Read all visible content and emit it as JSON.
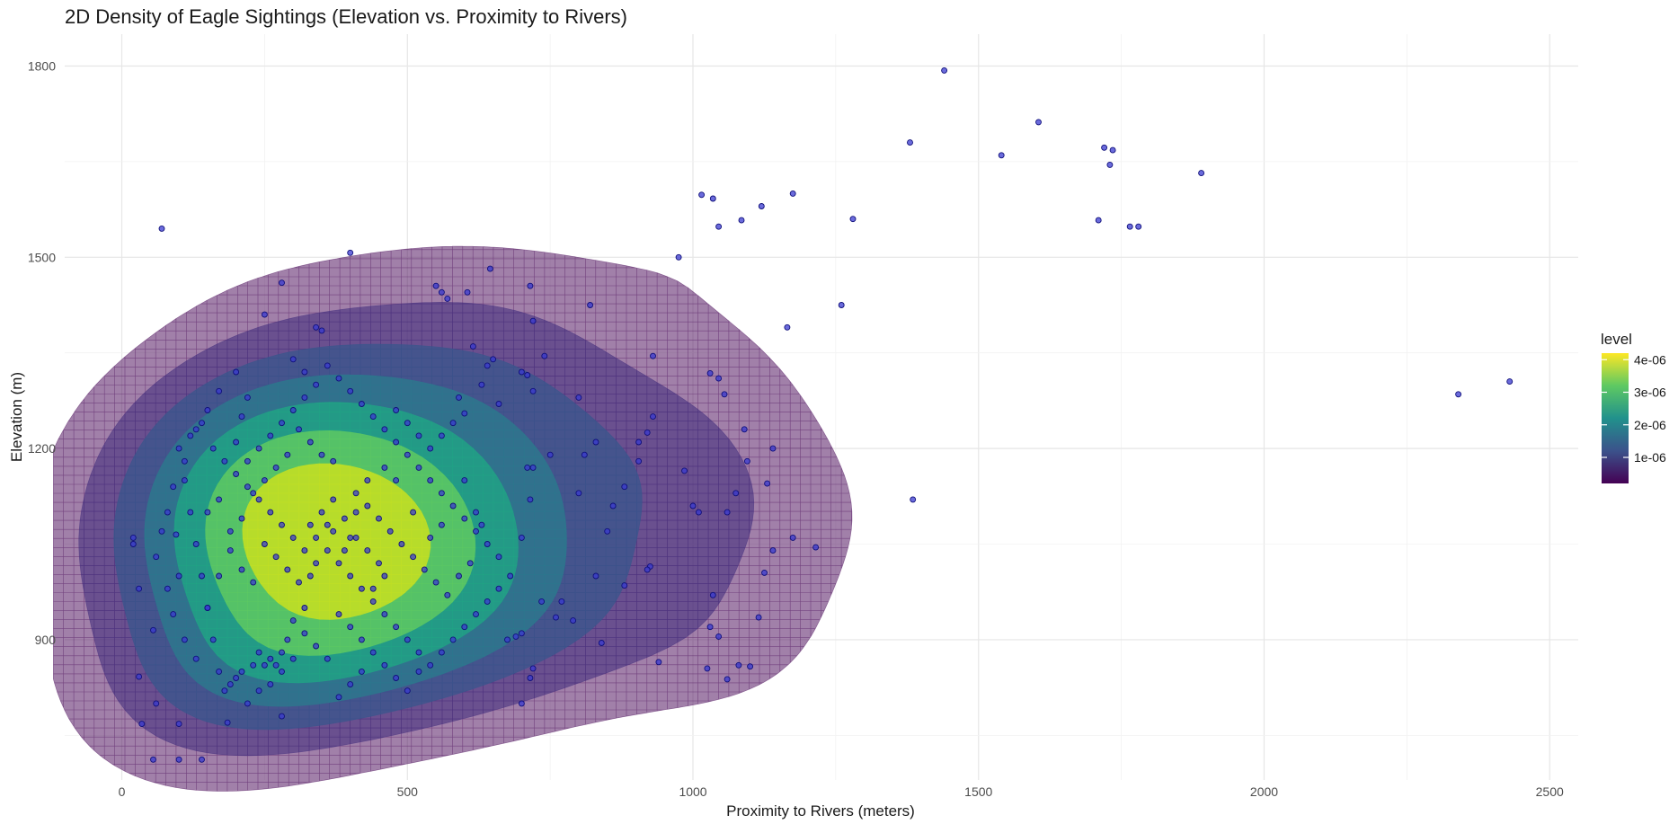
{
  "chart_data": {
    "type": "scatter",
    "title": "2D Density of Eagle Sightings (Elevation vs. Proximity to Rivers)",
    "xlabel": "Proximity to Rivers (meters)",
    "ylabel": "Elevation (m)",
    "xlim": [
      -100,
      2550
    ],
    "ylim": [
      680,
      1850
    ],
    "x_ticks": [
      "0",
      "500",
      "1000",
      "1500",
      "2000",
      "2500"
    ],
    "x_tick_values": [
      0,
      500,
      1000,
      1500,
      2000,
      2500
    ],
    "y_ticks": [
      "900",
      "1200",
      "1500",
      "1800"
    ],
    "y_tick_values": [
      900,
      1200,
      1500,
      1800
    ],
    "grid": true,
    "legend": {
      "title": "level",
      "position": "right",
      "labels": [
        "4e-06",
        "3e-06",
        "2e-06",
        "1e-06"
      ],
      "values": [
        4e-06,
        3e-06,
        2e-06,
        1e-06
      ],
      "range": [
        2e-07,
        4.2e-06
      ],
      "colors": [
        "#440154",
        "#3b528b",
        "#21918c",
        "#5ec962",
        "#fde725"
      ]
    },
    "point_color": "#1f1fb5",
    "density_levels": [
      {
        "level": 5e-07,
        "color": "#440154",
        "opacity": 0.5
      },
      {
        "level": 1e-06,
        "color": "#46307e",
        "opacity": 0.6
      },
      {
        "level": 1.5e-06,
        "color": "#39568c",
        "opacity": 0.75
      },
      {
        "level": 2e-06,
        "color": "#2b7b8e",
        "opacity": 0.75
      },
      {
        "level": 2.5e-06,
        "color": "#21a585",
        "opacity": 0.8
      },
      {
        "level": 3e-06,
        "color": "#5ec962",
        "opacity": 0.85
      },
      {
        "level": 3.5e-06,
        "color": "#c2df23",
        "opacity": 0.9
      }
    ],
    "points": [
      [
        70,
        1545
      ],
      [
        400,
        1507
      ],
      [
        280,
        1460
      ],
      [
        250,
        1410
      ],
      [
        340,
        1390
      ],
      [
        350,
        1385
      ],
      [
        550,
        1455
      ],
      [
        560,
        1445
      ],
      [
        570,
        1435
      ],
      [
        605,
        1445
      ],
      [
        645,
        1482
      ],
      [
        715,
        1455
      ],
      [
        720,
        1400
      ],
      [
        820,
        1425
      ],
      [
        975,
        1500
      ],
      [
        1015,
        1598
      ],
      [
        1035,
        1592
      ],
      [
        1045,
        1548
      ],
      [
        1085,
        1558
      ],
      [
        1120,
        1580
      ],
      [
        1175,
        1600
      ],
      [
        1280,
        1560
      ],
      [
        1260,
        1425
      ],
      [
        1165,
        1390
      ],
      [
        1380,
        1680
      ],
      [
        1440,
        1793
      ],
      [
        1540,
        1660
      ],
      [
        1605,
        1712
      ],
      [
        1720,
        1672
      ],
      [
        1735,
        1668
      ],
      [
        1730,
        1645
      ],
      [
        1710,
        1558
      ],
      [
        1765,
        1548
      ],
      [
        1780,
        1548
      ],
      [
        1890,
        1632
      ],
      [
        2340,
        1285
      ],
      [
        2430,
        1305
      ],
      [
        1385,
        1120
      ],
      [
        1140,
        1200
      ],
      [
        1130,
        1145
      ],
      [
        1175,
        1060
      ],
      [
        1215,
        1045
      ],
      [
        1140,
        1040
      ],
      [
        1125,
        1005
      ],
      [
        1115,
        935
      ],
      [
        1045,
        905
      ],
      [
        1030,
        920
      ],
      [
        1035,
        970
      ],
      [
        1025,
        855
      ],
      [
        1080,
        860
      ],
      [
        1100,
        858
      ],
      [
        1060,
        838
      ],
      [
        940,
        865
      ],
      [
        840,
        895
      ],
      [
        700,
        800
      ],
      [
        715,
        840
      ],
      [
        720,
        855
      ],
      [
        30,
        842
      ],
      [
        35,
        768
      ],
      [
        55,
        712
      ],
      [
        100,
        712
      ],
      [
        140,
        712
      ],
      [
        100,
        768
      ],
      [
        185,
        770
      ],
      [
        280,
        780
      ],
      [
        20,
        1060
      ],
      [
        30,
        980
      ],
      [
        60,
        800
      ],
      [
        55,
        915
      ],
      [
        100,
        1000
      ],
      [
        95,
        1065
      ],
      [
        20,
        1050
      ],
      [
        930,
        1345
      ],
      [
        1030,
        1318
      ],
      [
        1045,
        1310
      ],
      [
        1055,
        1285
      ],
      [
        1090,
        1230
      ],
      [
        1095,
        1180
      ],
      [
        985,
        1165
      ],
      [
        1075,
        1130
      ],
      [
        1060,
        1100
      ],
      [
        1010,
        1100
      ],
      [
        1000,
        1110
      ],
      [
        920,
        1225
      ],
      [
        930,
        1250
      ],
      [
        905,
        1210
      ],
      [
        905,
        1180
      ],
      [
        880,
        1140
      ],
      [
        860,
        1110
      ],
      [
        850,
        1070
      ],
      [
        830,
        1000
      ],
      [
        880,
        985
      ],
      [
        925,
        1015
      ],
      [
        920,
        1010
      ],
      [
        760,
        935
      ],
      [
        770,
        960
      ],
      [
        790,
        930
      ],
      [
        700,
        910
      ],
      [
        690,
        905
      ],
      [
        675,
        900
      ],
      [
        735,
        960
      ],
      [
        700,
        1060
      ],
      [
        715,
        1120
      ],
      [
        710,
        1170
      ],
      [
        720,
        1170
      ],
      [
        750,
        1190
      ],
      [
        800,
        1130
      ],
      [
        810,
        1190
      ],
      [
        830,
        1210
      ],
      [
        800,
        1280
      ],
      [
        650,
        1340
      ],
      [
        640,
        1330
      ],
      [
        630,
        1300
      ],
      [
        615,
        1360
      ],
      [
        600,
        1255
      ],
      [
        590,
        1280
      ],
      [
        660,
        1270
      ],
      [
        700,
        1320
      ],
      [
        710,
        1315
      ],
      [
        720,
        1290
      ],
      [
        740,
        1345
      ],
      [
        600,
        1150
      ],
      [
        620,
        1100
      ],
      [
        630,
        1080
      ],
      [
        560,
        1080
      ],
      [
        540,
        1060
      ],
      [
        510,
        1100
      ],
      [
        480,
        1150
      ],
      [
        460,
        1170
      ],
      [
        430,
        1150
      ],
      [
        410,
        1100
      ],
      [
        400,
        1060
      ],
      [
        370,
        1120
      ],
      [
        360,
        1080
      ],
      [
        340,
        1020
      ],
      [
        330,
        1000
      ],
      [
        320,
        950
      ],
      [
        300,
        930
      ],
      [
        290,
        900
      ],
      [
        280,
        880
      ],
      [
        270,
        860
      ],
      [
        260,
        870
      ],
      [
        250,
        860
      ],
      [
        240,
        880
      ],
      [
        230,
        860
      ],
      [
        210,
        850
      ],
      [
        200,
        840
      ],
      [
        190,
        830
      ],
      [
        180,
        820
      ],
      [
        170,
        850
      ],
      [
        160,
        900
      ],
      [
        150,
        950
      ],
      [
        140,
        1000
      ],
      [
        130,
        1050
      ],
      [
        120,
        1100
      ],
      [
        110,
        1150
      ],
      [
        100,
        1200
      ],
      [
        120,
        1220
      ],
      [
        140,
        1240
      ],
      [
        160,
        1200
      ],
      [
        180,
        1180
      ],
      [
        200,
        1160
      ],
      [
        220,
        1140
      ],
      [
        240,
        1120
      ],
      [
        260,
        1100
      ],
      [
        280,
        1080
      ],
      [
        300,
        1060
      ],
      [
        320,
        1040
      ],
      [
        340,
        1060
      ],
      [
        360,
        1040
      ],
      [
        380,
        1020
      ],
      [
        400,
        1000
      ],
      [
        420,
        980
      ],
      [
        440,
        960
      ],
      [
        460,
        940
      ],
      [
        480,
        920
      ],
      [
        500,
        900
      ],
      [
        520,
        880
      ],
      [
        540,
        860
      ],
      [
        560,
        880
      ],
      [
        580,
        900
      ],
      [
        600,
        920
      ],
      [
        620,
        940
      ],
      [
        640,
        960
      ],
      [
        660,
        980
      ],
      [
        680,
        1000
      ],
      [
        660,
        1030
      ],
      [
        640,
        1050
      ],
      [
        620,
        1070
      ],
      [
        600,
        1090
      ],
      [
        580,
        1110
      ],
      [
        560,
        1130
      ],
      [
        540,
        1150
      ],
      [
        520,
        1170
      ],
      [
        500,
        1190
      ],
      [
        480,
        1210
      ],
      [
        460,
        1230
      ],
      [
        440,
        1250
      ],
      [
        420,
        1270
      ],
      [
        400,
        1290
      ],
      [
        380,
        1310
      ],
      [
        360,
        1330
      ],
      [
        340,
        1300
      ],
      [
        320,
        1280
      ],
      [
        300,
        1260
      ],
      [
        280,
        1240
      ],
      [
        260,
        1220
      ],
      [
        240,
        1200
      ],
      [
        220,
        1180
      ],
      [
        200,
        1210
      ],
      [
        210,
        1250
      ],
      [
        220,
        1280
      ],
      [
        200,
        1320
      ],
      [
        170,
        1290
      ],
      [
        150,
        1260
      ],
      [
        130,
        1230
      ],
      [
        110,
        1180
      ],
      [
        90,
        1140
      ],
      [
        80,
        1100
      ],
      [
        70,
        1070
      ],
      [
        60,
        1030
      ],
      [
        80,
        980
      ],
      [
        90,
        940
      ],
      [
        110,
        900
      ],
      [
        130,
        870
      ],
      [
        150,
        950
      ],
      [
        170,
        1000
      ],
      [
        190,
        1040
      ],
      [
        210,
        1010
      ],
      [
        230,
        990
      ],
      [
        250,
        1050
      ],
      [
        270,
        1030
      ],
      [
        290,
        1010
      ],
      [
        310,
        990
      ],
      [
        330,
        1080
      ],
      [
        350,
        1100
      ],
      [
        370,
        1070
      ],
      [
        390,
        1090
      ],
      [
        410,
        1130
      ],
      [
        430,
        1110
      ],
      [
        450,
        1090
      ],
      [
        470,
        1070
      ],
      [
        490,
        1050
      ],
      [
        510,
        1030
      ],
      [
        530,
        1010
      ],
      [
        550,
        990
      ],
      [
        570,
        970
      ],
      [
        590,
        1000
      ],
      [
        610,
        1020
      ],
      [
        450,
        1020
      ],
      [
        430,
        1040
      ],
      [
        410,
        1060
      ],
      [
        390,
        1040
      ],
      [
        370,
        1180
      ],
      [
        350,
        1190
      ],
      [
        330,
        1210
      ],
      [
        310,
        1230
      ],
      [
        290,
        1190
      ],
      [
        270,
        1170
      ],
      [
        250,
        1150
      ],
      [
        230,
        1130
      ],
      [
        210,
        1090
      ],
      [
        190,
        1070
      ],
      [
        170,
        1120
      ],
      [
        150,
        1100
      ],
      [
        480,
        1260
      ],
      [
        500,
        1240
      ],
      [
        520,
        1220
      ],
      [
        540,
        1200
      ],
      [
        560,
        1220
      ],
      [
        580,
        1240
      ],
      [
        320,
        1320
      ],
      [
        300,
        1340
      ],
      [
        440,
        980
      ],
      [
        460,
        1000
      ],
      [
        380,
        940
      ],
      [
        400,
        920
      ],
      [
        420,
        900
      ],
      [
        440,
        880
      ],
      [
        460,
        860
      ],
      [
        480,
        840
      ],
      [
        500,
        820
      ],
      [
        520,
        850
      ],
      [
        420,
        850
      ],
      [
        400,
        830
      ],
      [
        380,
        810
      ],
      [
        360,
        870
      ],
      [
        340,
        890
      ],
      [
        320,
        910
      ],
      [
        300,
        870
      ],
      [
        280,
        850
      ],
      [
        260,
        830
      ],
      [
        240,
        820
      ],
      [
        220,
        800
      ]
    ]
  }
}
